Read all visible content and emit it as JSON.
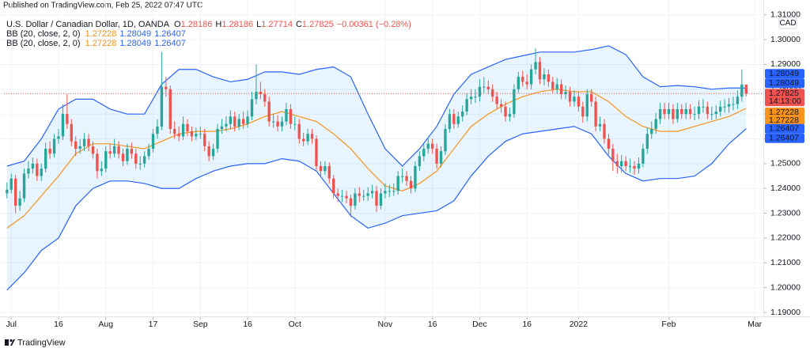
{
  "header": "Published on TradingView.com, Feb 25, 2022 07:47 UTC",
  "footer": "TradingView",
  "chart_data": {
    "type": "candlestick",
    "legend": {
      "symbol": "U.S. Dollar / Canadian Dollar, 1D, OANDA",
      "ohlc_labels": [
        "O",
        "H",
        "L",
        "C"
      ],
      "change": "−0.00361 (−0.28%)"
    },
    "indicators": [
      {
        "name": "BB (20, close, 2, 0)"
      },
      {
        "name": "BB (20, close, 2, 0)"
      }
    ],
    "currency": "CAD",
    "countdown": "14:13:00",
    "up_color": "#26a69a",
    "down_color": "#ef5350",
    "grid": true,
    "xlim": [
      -0.7,
      176
    ],
    "ylim": [
      1.1884,
      1.3112
    ],
    "yticks": [
      {
        "value": 1.19,
        "label": "1.19000"
      },
      {
        "value": 1.2,
        "label": "1.20000"
      },
      {
        "value": 1.21,
        "label": "1.21000"
      },
      {
        "value": 1.22,
        "label": "1.22000"
      },
      {
        "value": 1.23,
        "label": "1.23000"
      },
      {
        "value": 1.24,
        "label": "1.24000"
      },
      {
        "value": 1.25,
        "label": "1.25000"
      },
      {
        "value": 1.26,
        "label": "1.26000"
      },
      {
        "value": 1.27,
        "label": "1.27000"
      },
      {
        "value": 1.28,
        "label": "1.28000"
      },
      {
        "value": 1.29,
        "label": "1.29000"
      },
      {
        "value": 1.3,
        "label": "1.30000"
      },
      {
        "value": 1.31,
        "label": "1.31000"
      }
    ],
    "xticks": [
      {
        "value": 1,
        "label": "Jul"
      },
      {
        "value": 12,
        "label": "16"
      },
      {
        "value": 23,
        "label": "Aug"
      },
      {
        "value": 34,
        "label": "17"
      },
      {
        "value": 45,
        "label": "Sep"
      },
      {
        "value": 56,
        "label": "16"
      },
      {
        "value": 67,
        "label": "Oct"
      },
      {
        "value": 88,
        "label": "Nov"
      },
      {
        "value": 99,
        "label": "16"
      },
      {
        "value": 110,
        "label": "Dec"
      },
      {
        "value": 121,
        "label": "16"
      },
      {
        "value": 133,
        "label": "2022"
      },
      {
        "value": 154,
        "label": "Feb"
      },
      {
        "value": 174,
        "label": "Mar"
      }
    ],
    "open": [
      1.238,
      1.2395,
      1.244,
      1.233,
      1.236,
      1.246,
      1.248,
      1.25,
      1.245,
      1.248,
      1.256,
      1.254,
      1.26,
      1.261,
      1.27,
      1.266,
      1.259,
      1.256,
      1.257,
      1.26,
      1.257,
      1.254,
      1.247,
      1.248,
      1.255,
      1.254,
      1.257,
      1.254,
      1.251,
      1.256,
      1.254,
      1.25,
      1.25,
      1.253,
      1.256,
      1.262,
      1.265,
      1.281,
      1.28,
      1.264,
      1.262,
      1.261,
      1.266,
      1.263,
      1.261,
      1.262,
      1.262,
      1.257,
      1.253,
      1.256,
      1.264,
      1.265,
      1.266,
      1.269,
      1.265,
      1.268,
      1.266,
      1.269,
      1.276,
      1.279,
      1.278,
      1.275,
      1.267,
      1.267,
      1.265,
      1.267,
      1.272,
      1.266,
      1.266,
      1.26,
      1.259,
      1.262,
      1.26,
      1.249,
      1.247,
      1.249,
      1.244,
      1.238,
      1.237,
      1.237,
      1.236,
      1.233,
      1.238,
      1.237,
      1.237,
      1.238,
      1.239,
      1.233,
      1.238,
      1.239,
      1.239,
      1.239,
      1.245,
      1.245,
      1.243,
      1.24,
      1.249,
      1.253,
      1.256,
      1.258,
      1.256,
      1.25,
      1.255,
      1.264,
      1.27,
      1.266,
      1.269,
      1.271,
      1.276,
      1.277,
      1.277,
      1.281,
      1.281,
      1.28,
      1.277,
      1.274,
      1.273,
      1.269,
      1.27,
      1.28,
      1.285,
      1.283,
      1.282,
      1.288,
      1.291,
      1.284,
      1.286,
      1.283,
      1.28,
      1.282,
      1.278,
      1.279,
      1.275,
      1.277,
      1.273,
      1.269,
      1.278,
      1.275,
      1.265,
      1.266,
      1.26,
      1.256,
      1.251,
      1.249,
      1.251,
      1.249,
      1.249,
      1.248,
      1.25,
      1.256,
      1.262,
      1.264,
      1.268,
      1.272,
      1.27,
      1.272,
      1.268,
      1.272,
      1.27,
      1.272,
      1.27,
      1.27,
      1.273,
      1.273,
      1.27,
      1.27,
      1.271,
      1.273,
      1.273,
      1.274,
      1.274,
      1.277,
      1.28186
    ],
    "high": [
      1.2425,
      1.246,
      1.2455,
      1.239,
      1.248,
      1.251,
      1.2525,
      1.252,
      1.25,
      1.2585,
      1.259,
      1.262,
      1.264,
      1.274,
      1.278,
      1.268,
      1.261,
      1.26,
      1.2625,
      1.262,
      1.259,
      1.256,
      1.251,
      1.257,
      1.258,
      1.26,
      1.259,
      1.256,
      1.258,
      1.2585,
      1.256,
      1.253,
      1.255,
      1.258,
      1.264,
      1.268,
      1.295,
      1.285,
      1.2815,
      1.267,
      1.265,
      1.269,
      1.268,
      1.265,
      1.2645,
      1.265,
      1.264,
      1.259,
      1.258,
      1.266,
      1.268,
      1.269,
      1.2715,
      1.271,
      1.27,
      1.271,
      1.2715,
      1.279,
      1.29,
      1.283,
      1.28,
      1.277,
      1.27,
      1.2695,
      1.269,
      1.2745,
      1.274,
      1.269,
      1.268,
      1.2625,
      1.264,
      1.264,
      1.2615,
      1.251,
      1.251,
      1.2505,
      1.2455,
      1.24,
      1.2395,
      1.239,
      1.2375,
      1.24,
      1.2405,
      1.2395,
      1.2405,
      1.2415,
      1.241,
      1.24,
      1.242,
      1.2415,
      1.242,
      1.247,
      1.248,
      1.247,
      1.245,
      1.251,
      1.255,
      1.258,
      1.2605,
      1.26,
      1.258,
      1.257,
      1.266,
      1.272,
      1.272,
      1.271,
      1.2735,
      1.2785,
      1.28,
      1.28,
      1.284,
      1.285,
      1.2835,
      1.282,
      1.279,
      1.276,
      1.275,
      1.2725,
      1.282,
      1.287,
      1.2875,
      1.286,
      1.29,
      1.2965,
      1.293,
      1.2885,
      1.288,
      1.285,
      1.2845,
      1.284,
      1.2815,
      1.281,
      1.2795,
      1.279,
      1.275,
      1.28,
      1.28,
      1.277,
      1.269,
      1.268,
      1.262,
      1.258,
      1.254,
      1.2535,
      1.253,
      1.252,
      1.251,
      1.2525,
      1.258,
      1.2645,
      1.267,
      1.2705,
      1.2745,
      1.2745,
      1.2745,
      1.274,
      1.2745,
      1.274,
      1.2745,
      1.274,
      1.273,
      1.2755,
      1.276,
      1.275,
      1.273,
      1.2735,
      1.2755,
      1.276,
      1.2765,
      1.277,
      1.2795,
      1.288,
      1.28186
    ],
    "low": [
      1.236,
      1.238,
      1.23,
      1.231,
      1.2345,
      1.244,
      1.246,
      1.243,
      1.243,
      1.2465,
      1.252,
      1.2525,
      1.258,
      1.2595,
      1.264,
      1.257,
      1.253,
      1.254,
      1.255,
      1.255,
      1.252,
      1.244,
      1.245,
      1.2465,
      1.252,
      1.2525,
      1.252,
      1.249,
      1.2495,
      1.252,
      1.248,
      1.2475,
      1.2485,
      1.2515,
      1.2545,
      1.26,
      1.2635,
      1.277,
      1.262,
      1.26,
      1.259,
      1.2595,
      1.261,
      1.259,
      1.2595,
      1.26,
      1.255,
      1.251,
      1.2515,
      1.2545,
      1.262,
      1.263,
      1.264,
      1.263,
      1.2635,
      1.264,
      1.2645,
      1.2675,
      1.274,
      1.276,
      1.273,
      1.265,
      1.2645,
      1.263,
      1.263,
      1.2655,
      1.264,
      1.2635,
      1.258,
      1.257,
      1.2575,
      1.258,
      1.247,
      1.245,
      1.2455,
      1.242,
      1.236,
      1.2345,
      1.2345,
      1.234,
      1.2285,
      1.2315,
      1.2345,
      1.235,
      1.235,
      1.236,
      1.2305,
      1.2315,
      1.236,
      1.2365,
      1.237,
      1.2375,
      1.2425,
      1.241,
      1.238,
      1.2385,
      1.247,
      1.251,
      1.254,
      1.254,
      1.248,
      1.2485,
      1.2535,
      1.2625,
      1.264,
      1.2645,
      1.267,
      1.2695,
      1.274,
      1.2745,
      1.275,
      1.2785,
      1.278,
      1.275,
      1.272,
      1.2705,
      1.267,
      1.267,
      1.2685,
      1.2785,
      1.281,
      1.28,
      1.28,
      1.286,
      1.282,
      1.2815,
      1.281,
      1.2785,
      1.278,
      1.276,
      1.276,
      1.273,
      1.273,
      1.271,
      1.2665,
      1.267,
      1.273,
      1.263,
      1.263,
      1.258,
      1.2535,
      1.247,
      1.246,
      1.2465,
      1.247,
      1.2465,
      1.2455,
      1.246,
      1.2485,
      1.254,
      1.26,
      1.262,
      1.266,
      1.268,
      1.268,
      1.266,
      1.2665,
      1.268,
      1.268,
      1.268,
      1.2675,
      1.268,
      1.2705,
      1.268,
      1.2675,
      1.268,
      1.269,
      1.2705,
      1.2705,
      1.2715,
      1.272,
      1.275,
      1.27714
    ],
    "close": [
      1.2395,
      1.244,
      1.233,
      1.236,
      1.246,
      1.248,
      1.25,
      1.245,
      1.248,
      1.256,
      1.254,
      1.26,
      1.261,
      1.27,
      1.266,
      1.259,
      1.256,
      1.257,
      1.26,
      1.257,
      1.254,
      1.247,
      1.248,
      1.255,
      1.254,
      1.257,
      1.254,
      1.251,
      1.256,
      1.254,
      1.25,
      1.25,
      1.253,
      1.256,
      1.262,
      1.265,
      1.281,
      1.28,
      1.264,
      1.262,
      1.261,
      1.266,
      1.263,
      1.261,
      1.262,
      1.262,
      1.257,
      1.253,
      1.256,
      1.264,
      1.265,
      1.266,
      1.269,
      1.265,
      1.268,
      1.266,
      1.269,
      1.276,
      1.279,
      1.278,
      1.275,
      1.267,
      1.267,
      1.265,
      1.267,
      1.272,
      1.266,
      1.266,
      1.26,
      1.259,
      1.262,
      1.26,
      1.249,
      1.247,
      1.249,
      1.244,
      1.238,
      1.237,
      1.237,
      1.236,
      1.233,
      1.238,
      1.237,
      1.237,
      1.238,
      1.239,
      1.233,
      1.238,
      1.239,
      1.239,
      1.239,
      1.245,
      1.245,
      1.243,
      1.24,
      1.249,
      1.253,
      1.256,
      1.258,
      1.256,
      1.25,
      1.255,
      1.264,
      1.27,
      1.266,
      1.269,
      1.271,
      1.276,
      1.277,
      1.277,
      1.281,
      1.281,
      1.28,
      1.277,
      1.274,
      1.273,
      1.269,
      1.27,
      1.28,
      1.285,
      1.283,
      1.282,
      1.288,
      1.291,
      1.284,
      1.286,
      1.283,
      1.28,
      1.282,
      1.278,
      1.279,
      1.275,
      1.277,
      1.273,
      1.269,
      1.278,
      1.275,
      1.265,
      1.266,
      1.26,
      1.256,
      1.251,
      1.249,
      1.251,
      1.249,
      1.249,
      1.248,
      1.25,
      1.256,
      1.262,
      1.264,
      1.268,
      1.272,
      1.27,
      1.272,
      1.268,
      1.272,
      1.27,
      1.272,
      1.27,
      1.27,
      1.273,
      1.273,
      1.27,
      1.27,
      1.271,
      1.273,
      1.273,
      1.274,
      1.274,
      1.277,
      1.2819,
      1.27825
    ],
    "bands": {
      "upper_color": "#2962ff",
      "middle_color": "#f7931e",
      "lower_color": "#2962ff",
      "fill": "#2196f3",
      "x": [
        0,
        4,
        8,
        12,
        16,
        20,
        24,
        28,
        32,
        36,
        40,
        44,
        48,
        52,
        56,
        60,
        64,
        68,
        72,
        76,
        80,
        84,
        88,
        92,
        96,
        100,
        104,
        108,
        112,
        116,
        120,
        124,
        128,
        132,
        136,
        140,
        144,
        148,
        152,
        156,
        160,
        164,
        168,
        172
      ],
      "upper": [
        1.249,
        1.251,
        1.26,
        1.272,
        1.276,
        1.276,
        1.272,
        1.27,
        1.27,
        1.282,
        1.288,
        1.288,
        1.285,
        1.283,
        1.284,
        1.287,
        1.287,
        1.286,
        1.288,
        1.289,
        1.285,
        1.27,
        1.256,
        1.249,
        1.256,
        1.265,
        1.278,
        1.286,
        1.289,
        1.292,
        1.2935,
        1.295,
        1.295,
        1.295,
        1.296,
        1.2975,
        1.294,
        1.285,
        1.281,
        1.2815,
        1.281,
        1.28,
        1.2805,
        1.28049
      ],
      "middle": [
        1.224,
        1.229,
        1.237,
        1.245,
        1.254,
        1.258,
        1.258,
        1.257,
        1.256,
        1.259,
        1.262,
        1.263,
        1.263,
        1.264,
        1.266,
        1.269,
        1.271,
        1.269,
        1.267,
        1.262,
        1.256,
        1.248,
        1.241,
        1.239,
        1.242,
        1.247,
        1.256,
        1.265,
        1.27,
        1.274,
        1.277,
        1.279,
        1.28,
        1.279,
        1.279,
        1.275,
        1.269,
        1.265,
        1.263,
        1.263,
        1.265,
        1.267,
        1.269,
        1.27228
      ],
      "lower": [
        1.199,
        1.206,
        1.215,
        1.22,
        1.233,
        1.24,
        1.243,
        1.243,
        1.242,
        1.24,
        1.24,
        1.244,
        1.247,
        1.249,
        1.25,
        1.25,
        1.252,
        1.251,
        1.247,
        1.238,
        1.229,
        1.224,
        1.226,
        1.229,
        1.23,
        1.231,
        1.235,
        1.245,
        1.253,
        1.259,
        1.262,
        1.263,
        1.264,
        1.265,
        1.262,
        1.253,
        1.246,
        1.243,
        1.244,
        1.244,
        1.245,
        1.25,
        1.258,
        1.26407
      ]
    }
  }
}
